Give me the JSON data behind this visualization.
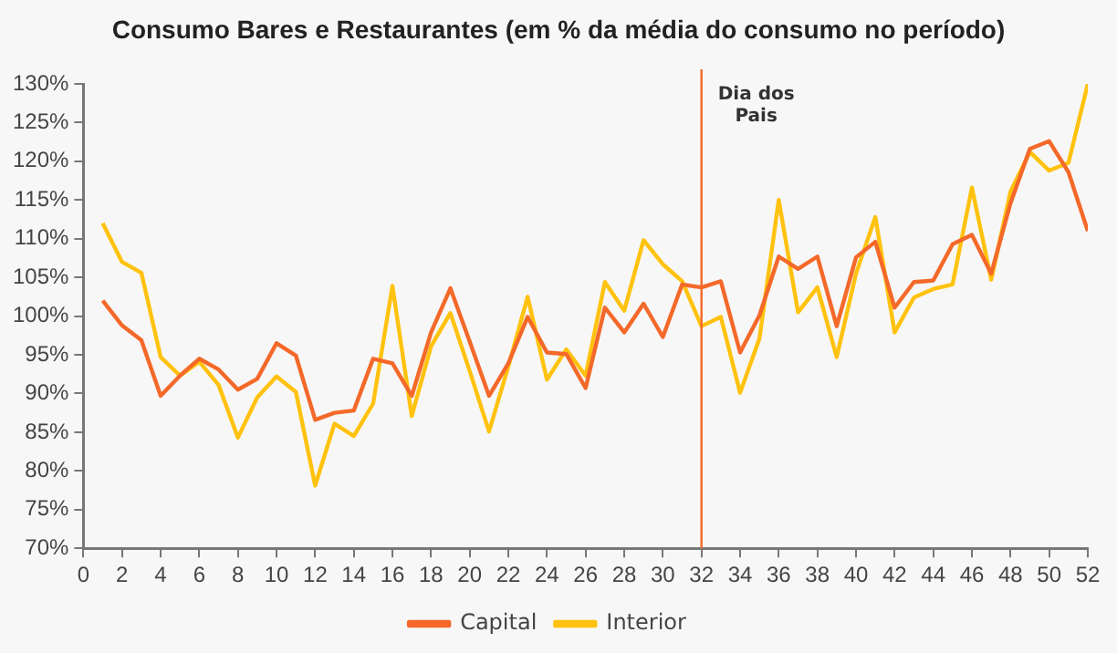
{
  "chart_data": {
    "type": "line",
    "title": "Consumo Bares e Restaurantes (em % da média do consumo no período)",
    "x": [
      1,
      2,
      3,
      4,
      5,
      6,
      7,
      8,
      9,
      10,
      11,
      12,
      13,
      14,
      15,
      16,
      17,
      18,
      19,
      20,
      21,
      22,
      23,
      24,
      25,
      26,
      27,
      28,
      29,
      30,
      31,
      32,
      33,
      34,
      35,
      36,
      37,
      38,
      39,
      40,
      41,
      42,
      43,
      44,
      45,
      46,
      47,
      48,
      49,
      50,
      51,
      52
    ],
    "series": [
      {
        "name": "Capital",
        "color": "#f4692a",
        "values": [
          102,
          98.8,
          96.9,
          89.7,
          92.3,
          94.5,
          93.1,
          90.5,
          91.9,
          96.5,
          94.9,
          86.6,
          87.5,
          87.8,
          94.5,
          93.9,
          89.7,
          97.9,
          103.6,
          96.7,
          89.7,
          93.9,
          99.9,
          95.3,
          95.1,
          90.7,
          101.1,
          97.9,
          101.6,
          97.3,
          104.1,
          103.7,
          104.5,
          95.3,
          100.1,
          107.7,
          106.1,
          107.7,
          98.7,
          107.6,
          109.6,
          101.1,
          104.4,
          104.6,
          109.3,
          110.5,
          105.5,
          114.6,
          121.6,
          122.6,
          118.6,
          111
        ]
      },
      {
        "name": "Interior",
        "color": "#ffc20e",
        "values": [
          112,
          107,
          105.6,
          94.7,
          92.3,
          94.1,
          91.1,
          84.3,
          89.5,
          92.2,
          90.2,
          78.1,
          86.1,
          84.5,
          88.7,
          103.9,
          87.1,
          96.1,
          100.4,
          92.9,
          85.1,
          93.5,
          102.5,
          91.8,
          95.7,
          92.3,
          104.4,
          100.7,
          109.8,
          106.7,
          104.5,
          98.7,
          99.9,
          90.1,
          97.1,
          115,
          100.5,
          103.7,
          94.7,
          105.5,
          112.8,
          97.9,
          102.4,
          103.5,
          104.1,
          116.6,
          104.7,
          116.1,
          121.2,
          118.8,
          119.8,
          130
        ]
      }
    ],
    "xlim": [
      0,
      52
    ],
    "xticks": [
      0,
      2,
      4,
      6,
      8,
      10,
      12,
      14,
      16,
      18,
      20,
      22,
      24,
      26,
      28,
      30,
      32,
      34,
      36,
      38,
      40,
      42,
      44,
      46,
      48,
      50,
      52
    ],
    "ylim": [
      70,
      130
    ],
    "yticks": [
      {
        "value": 70,
        "label": "70%"
      },
      {
        "value": 75,
        "label": "75%"
      },
      {
        "value": 80,
        "label": "80%"
      },
      {
        "value": 85,
        "label": "85%"
      },
      {
        "value": 90,
        "label": "90%"
      },
      {
        "value": 95,
        "label": "95%"
      },
      {
        "value": 100,
        "label": "100%"
      },
      {
        "value": 105,
        "label": "105%"
      },
      {
        "value": 110,
        "label": "110%"
      },
      {
        "value": 115,
        "label": "115%"
      },
      {
        "value": 120,
        "label": "120%"
      },
      {
        "value": 125,
        "label": "125%"
      },
      {
        "value": 130,
        "label": "130%"
      }
    ],
    "ref_lines": [
      {
        "axis": "x",
        "value": 32,
        "label": "Dia dos Pais",
        "color": "#f4692a"
      }
    ],
    "grid": false,
    "legend": "bottom",
    "marker": "none",
    "line_style": "solid"
  }
}
